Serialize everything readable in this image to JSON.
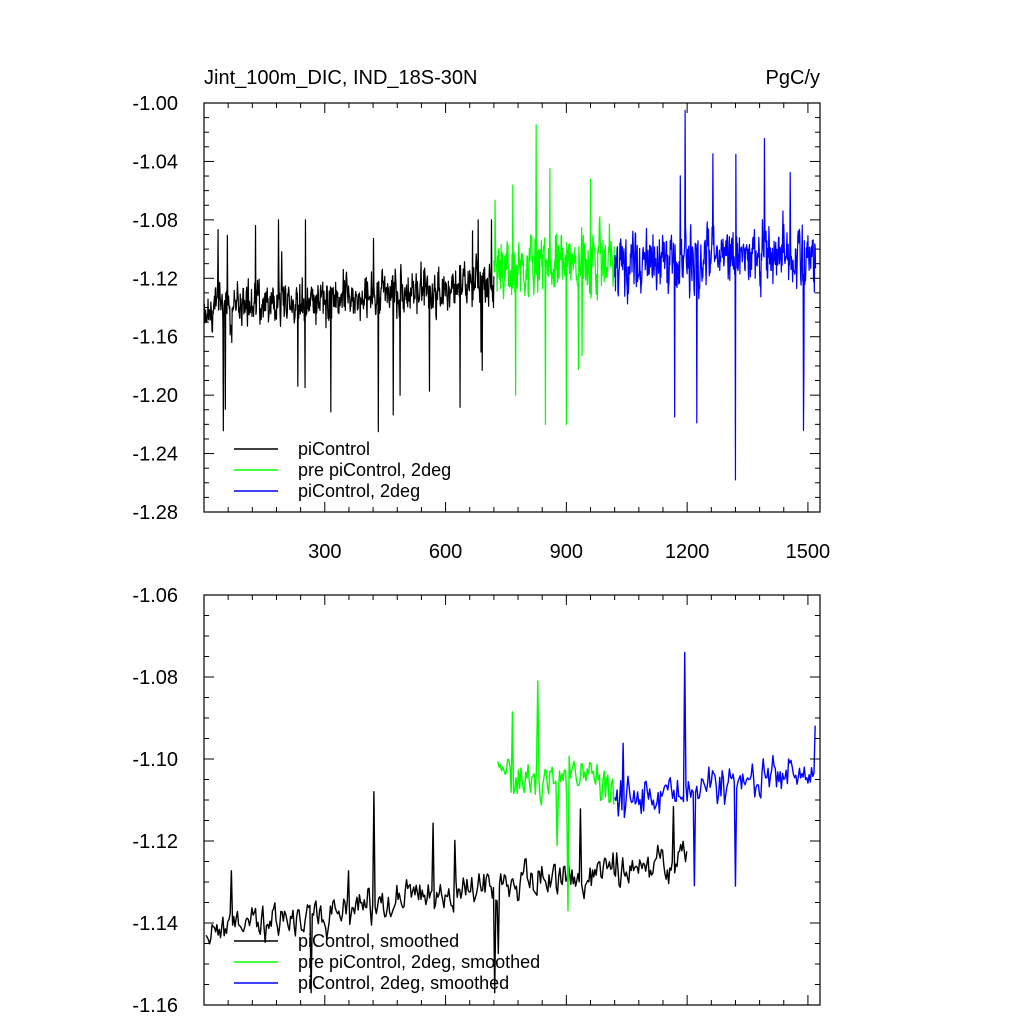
{
  "chart_data": [
    {
      "type": "line",
      "title": "Jint_100m_DIC, IND_18S-30N",
      "units": "PgC/y",
      "xlim": [
        0,
        1530
      ],
      "ylim": [
        -1.28,
        -1.0
      ],
      "x_ticks": [
        300,
        600,
        900,
        1200,
        1500
      ],
      "x_tick_labels": [
        "300",
        "600",
        "900",
        "1200",
        "1500"
      ],
      "y_ticks": [
        -1.28,
        -1.24,
        -1.2,
        -1.16,
        -1.12,
        -1.08,
        -1.04,
        -1.0
      ],
      "y_tick_labels": [
        "-1.28",
        "-1.24",
        "-1.20",
        "-1.16",
        "-1.12",
        "-1.08",
        "-1.04",
        "-1.00"
      ],
      "legend_position": "bottom-left",
      "series": [
        {
          "name": "piControl",
          "color": "#000000",
          "x_start": 1,
          "x_end": 720,
          "step": 1,
          "mean_start": -1.14,
          "mean_end": -1.125,
          "amplitude": 0.022,
          "min": -1.225,
          "max": -1.08
        },
        {
          "name": "pre piControl, 2deg",
          "color": "#00ff00",
          "x_start": 720,
          "x_end": 1020,
          "step": 1,
          "mean_start": -1.115,
          "mean_end": -1.105,
          "amplitude": 0.03,
          "min": -1.22,
          "max": -1.015
        },
        {
          "name": "piControl, 2deg",
          "color": "#0000ff",
          "x_start": 1020,
          "x_end": 1520,
          "step": 1,
          "mean_start": -1.11,
          "mean_end": -1.105,
          "amplitude": 0.03,
          "min": -1.258,
          "max": -1.005
        }
      ]
    },
    {
      "type": "line",
      "xlim": [
        0,
        1530
      ],
      "ylim": [
        -1.16,
        -1.06
      ],
      "x_ticks": [
        300,
        600,
        900,
        1200,
        1500
      ],
      "y_ticks": [
        -1.16,
        -1.14,
        -1.12,
        -1.1,
        -1.08,
        -1.06
      ],
      "y_tick_labels": [
        "-1.16",
        "-1.14",
        "-1.12",
        "-1.10",
        "-1.08",
        "-1.06"
      ],
      "legend_position": "bottom-left",
      "series": [
        {
          "name": "piControl, smoothed",
          "color": "#000000",
          "x_start": 5,
          "x_end": 1200,
          "step": 3,
          "mean_start": -1.142,
          "mean_end": -1.124,
          "amplitude": 0.006,
          "min": -1.157,
          "max": -1.108
        },
        {
          "name": "pre piControl, 2deg, smoothed",
          "color": "#00ff00",
          "x_start": 730,
          "x_end": 1020,
          "step": 3,
          "mean_start": -1.105,
          "mean_end": -1.105,
          "amplitude": 0.007,
          "min": -1.137,
          "max": -1.081
        },
        {
          "name": "piControl, 2deg, smoothed",
          "color": "#0000ff",
          "x_start": 1020,
          "x_end": 1520,
          "step": 3,
          "mean_start": -1.11,
          "mean_end": -1.103,
          "amplitude": 0.007,
          "min": -1.131,
          "max": -1.074
        }
      ]
    }
  ]
}
